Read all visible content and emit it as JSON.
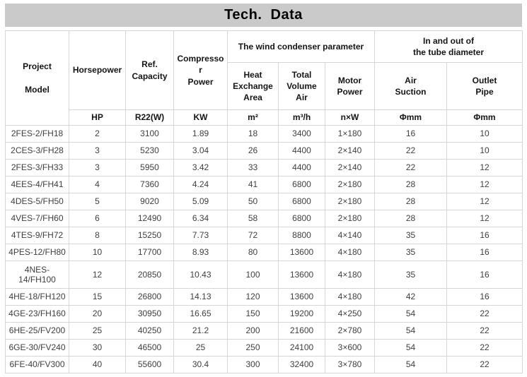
{
  "title_bar": {
    "title": "Tech.  Data"
  },
  "chart_data": {
    "type": "table",
    "title": "Tech.  Data",
    "column_groups": [
      {
        "label": "The wind condenser parameter",
        "spans_columns": [
          4,
          5,
          6
        ]
      },
      {
        "label": "In and out of\nthe tube diameter",
        "spans_columns": [
          7,
          8
        ]
      }
    ],
    "columns": [
      "Project\n\nModel",
      "Horsepower",
      "Ref.\nCapacity",
      "Compresso\nr\nPower",
      "Heat\nExchange\nArea",
      "Total\nVolume\nAir",
      "Motor\nPower",
      "Air\nSuction",
      "Outlet\nPipe"
    ],
    "units": [
      "HP",
      "R22(W)",
      "KW",
      "m²",
      "m³/h",
      "n×W",
      "Φmm",
      "Φmm"
    ],
    "rows": [
      [
        "2FES-2/FH18",
        "2",
        "3100",
        "1.89",
        "18",
        "3400",
        "1×180",
        "16",
        "10"
      ],
      [
        "2CES-3/FH28",
        "3",
        "5230",
        "3.04",
        "26",
        "4400",
        "2×140",
        "22",
        "10"
      ],
      [
        "2FES-3/FH33",
        "3",
        "5950",
        "3.42",
        "33",
        "4400",
        "2×140",
        "22",
        "12"
      ],
      [
        "4EES-4/FH41",
        "4",
        "7360",
        "4.24",
        "41",
        "6800",
        "2×180",
        "28",
        "12"
      ],
      [
        "4DES-5/FH50",
        "5",
        "9020",
        "5.09",
        "50",
        "6800",
        "2×180",
        "28",
        "12"
      ],
      [
        "4VES-7/FH60",
        "6",
        "12490",
        "6.34",
        "58",
        "6800",
        "2×180",
        "28",
        "12"
      ],
      [
        "4TES-9/FH72",
        "8",
        "15250",
        "7.73",
        "72",
        "8800",
        "4×140",
        "35",
        "16"
      ],
      [
        "4PES-12/FH80",
        "10",
        "17700",
        "8.93",
        "80",
        "13600",
        "4×180",
        "35",
        "16"
      ],
      [
        "4NES-14/FH100",
        "12",
        "20850",
        "10.43",
        "100",
        "13600",
        "4×180",
        "35",
        "16"
      ],
      [
        "4HE-18/FH120",
        "15",
        "26800",
        "14.13",
        "120",
        "13600",
        "4×180",
        "42",
        "16"
      ],
      [
        "4GE-23/FH160",
        "20",
        "30950",
        "16.65",
        "150",
        "19200",
        "4×250",
        "54",
        "22"
      ],
      [
        "6HE-25/FV200",
        "25",
        "40250",
        "21.2",
        "200",
        "21600",
        "2×780",
        "54",
        "22"
      ],
      [
        "6GE-30/FV240",
        "30",
        "46500",
        "25",
        "250",
        "24100",
        "3×600",
        "54",
        "22"
      ],
      [
        "6FE-40/FV300",
        "40",
        "55600",
        "30.4",
        "300",
        "32400",
        "3×780",
        "54",
        "22"
      ]
    ],
    "layout": {
      "legend": "none",
      "grid": "on"
    },
    "colors": {
      "title_bar_bg": "#cacaca",
      "grid_border": "#d6d6d6",
      "header_text": "#151515",
      "body_text": "#3f3f3f",
      "background": "#ffffff"
    }
  }
}
